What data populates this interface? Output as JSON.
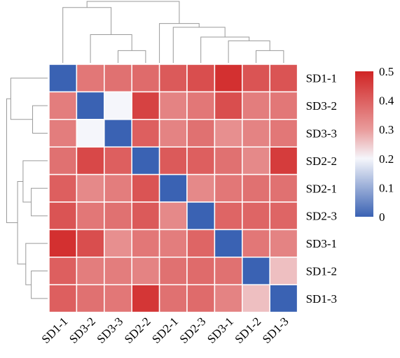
{
  "chart_data": {
    "type": "heatmap",
    "title": "",
    "rows": [
      "SD1-1",
      "SD3-2",
      "SD3-3",
      "SD2-2",
      "SD2-1",
      "SD2-3",
      "SD3-1",
      "SD1-2",
      "SD1-3"
    ],
    "columns": [
      "SD1-1",
      "SD3-2",
      "SD3-3",
      "SD2-2",
      "SD2-1",
      "SD2-3",
      "SD3-1",
      "SD1-2",
      "SD1-3"
    ],
    "values": [
      [
        0.0,
        0.36,
        0.37,
        0.38,
        0.41,
        0.43,
        0.48,
        0.42,
        0.42
      ],
      [
        0.35,
        0.0,
        0.2,
        0.45,
        0.34,
        0.36,
        0.43,
        0.35,
        0.36
      ],
      [
        0.35,
        0.2,
        0.0,
        0.4,
        0.34,
        0.37,
        0.32,
        0.34,
        0.36
      ],
      [
        0.37,
        0.44,
        0.4,
        0.0,
        0.41,
        0.4,
        0.37,
        0.33,
        0.46
      ],
      [
        0.4,
        0.33,
        0.35,
        0.42,
        0.0,
        0.33,
        0.36,
        0.37,
        0.37
      ],
      [
        0.42,
        0.36,
        0.37,
        0.41,
        0.33,
        0.0,
        0.39,
        0.39,
        0.39
      ],
      [
        0.48,
        0.43,
        0.32,
        0.36,
        0.35,
        0.39,
        0.0,
        0.36,
        0.34
      ],
      [
        0.4,
        0.35,
        0.35,
        0.34,
        0.37,
        0.38,
        0.37,
        0.0,
        0.26
      ],
      [
        0.4,
        0.37,
        0.36,
        0.47,
        0.37,
        0.38,
        0.34,
        0.26,
        0.0
      ]
    ],
    "colorbar": {
      "min": 0,
      "max": 0.5,
      "ticks": [
        "0",
        "0.1",
        "0.2",
        "0.3",
        "0.4",
        "0.5"
      ],
      "stops": [
        {
          "v": 0.0,
          "color": "#3a62b3"
        },
        {
          "v": 0.2,
          "color": "#f5f6fb"
        },
        {
          "v": 0.3,
          "color": "#e99b9b"
        },
        {
          "v": 0.5,
          "color": "#d02424"
        }
      ]
    },
    "dendrograms": {
      "top": [
        {
          "x": [
            3,
            3,
            4,
            4
          ],
          "h": [
            0,
            1,
            1,
            0
          ]
        },
        {
          "x": [
            2,
            2,
            3.5,
            3.5
          ],
          "h": [
            0,
            2.3,
            2.3,
            1
          ]
        },
        {
          "x": [
            9,
            9,
            8,
            8
          ],
          "h": [
            0,
            1,
            1,
            0
          ]
        },
        {
          "x": [
            7,
            7,
            8.5,
            8.5
          ],
          "h": [
            0,
            1.8,
            1.8,
            1
          ]
        },
        {
          "x": [
            6,
            6,
            7.75,
            7.75
          ],
          "h": [
            0,
            2.1,
            2.1,
            1.8
          ]
        },
        {
          "x": [
            5,
            5,
            6.875,
            6.875
          ],
          "h": [
            0,
            2.9,
            2.9,
            2.1
          ]
        },
        {
          "x": [
            4.5,
            4.5,
            5.9375,
            5.9375
          ],
          "h": [
            0,
            3.2,
            3.2,
            2.9
          ]
        },
        {
          "x": [
            1,
            1,
            2.75,
            2.75
          ],
          "h": [
            0,
            4.5,
            4.5,
            2.3
          ]
        },
        {
          "x": [
            1.875,
            1.875,
            5.21875,
            5.21875
          ],
          "h": [
            4.5,
            5.0,
            5.0,
            3.2
          ]
        }
      ],
      "left": [
        {
          "x": [
            2,
            2,
            3,
            3
          ],
          "h": [
            0,
            1.1,
            1.1,
            0
          ]
        },
        {
          "x": [
            1,
            1,
            2.5,
            2.5
          ],
          "h": [
            0,
            2.7,
            2.7,
            1.1
          ]
        },
        {
          "x": [
            5,
            5,
            6,
            6
          ],
          "h": [
            0,
            1.2,
            1.2,
            0
          ]
        },
        {
          "x": [
            4,
            4,
            5.5,
            5.5
          ],
          "h": [
            0,
            1.8,
            1.8,
            1.2
          ]
        },
        {
          "x": [
            8,
            8,
            9,
            9
          ],
          "h": [
            0,
            1.2,
            1.2,
            0
          ]
        },
        {
          "x": [
            7,
            7,
            8.5,
            8.5
          ],
          "h": [
            0,
            1.6,
            1.6,
            1.2
          ]
        },
        {
          "x": [
            4.75,
            4.75,
            7.75,
            7.75
          ],
          "h": [
            1.8,
            2.2,
            2.2,
            1.6
          ]
        },
        {
          "x": [
            1.75,
            1.75,
            6.25,
            6.25
          ],
          "h": [
            2.7,
            3.0,
            3.0,
            2.2
          ]
        }
      ]
    }
  }
}
